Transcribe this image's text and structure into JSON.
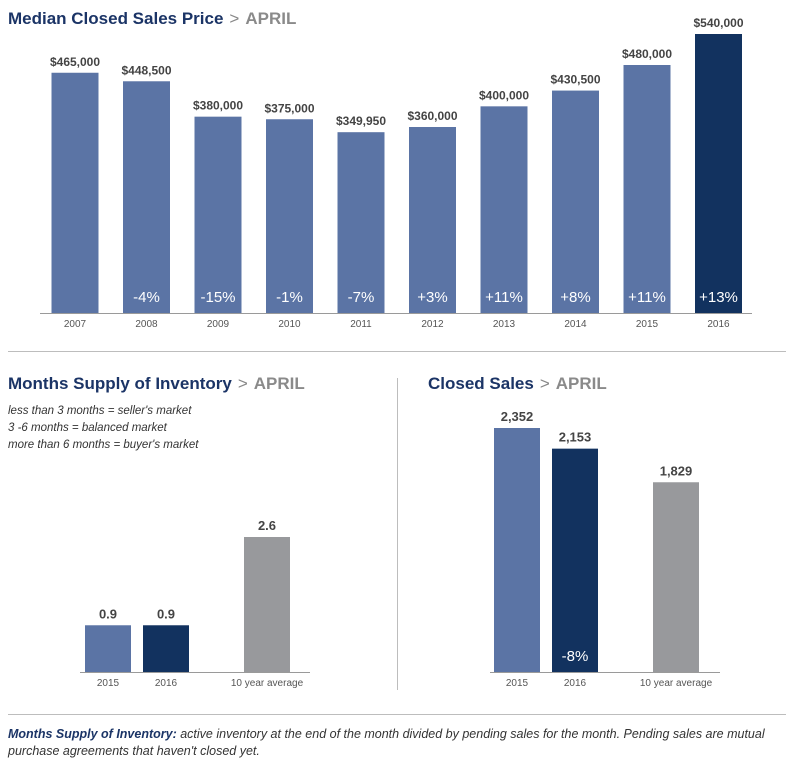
{
  "colors": {
    "bar": "#5b74a5",
    "highlight": "#12325f",
    "average": "#98999c",
    "axis": "#9a9a9a"
  },
  "price_chart": {
    "title": "Median Closed Sales Price",
    "subtitle": "APRIL",
    "chart_data": {
      "type": "bar",
      "title": "Median Closed Sales Price",
      "categories": [
        "2007",
        "2008",
        "2009",
        "2010",
        "2011",
        "2012",
        "2013",
        "2014",
        "2015",
        "2016"
      ],
      "values": [
        465000,
        448500,
        380000,
        375000,
        349950,
        360000,
        400000,
        430500,
        480000,
        540000
      ],
      "value_labels": [
        "$465,000",
        "$448,500",
        "$380,000",
        "$375,000",
        "$349,950",
        "$360,000",
        "$400,000",
        "$430,500",
        "$480,000",
        "$540,000"
      ],
      "change_labels": [
        "",
        "-4%",
        "-15%",
        "-1%",
        "-7%",
        "+3%",
        "+11%",
        "+8%",
        "+11%",
        "+13%"
      ],
      "highlight_index": 9,
      "ylim": [
        0,
        540000
      ]
    }
  },
  "supply_chart": {
    "title": "Months Supply of Inventory",
    "subtitle": "APRIL",
    "legend_lines": [
      "less than 3 months = seller's market",
      "3 -6 months = balanced market",
      "more than 6 months = buyer's market"
    ],
    "chart_data": {
      "type": "bar",
      "title": "Months Supply of Inventory",
      "categories": [
        "2015",
        "2016",
        "10 year average"
      ],
      "values": [
        0.9,
        0.9,
        2.6
      ],
      "value_labels": [
        "0.9",
        "0.9",
        "2.6"
      ],
      "ylim": [
        0,
        6.5
      ]
    }
  },
  "sales_chart": {
    "title": "Closed Sales",
    "subtitle": "APRIL",
    "chart_data": {
      "type": "bar",
      "title": "Closed Sales",
      "categories": [
        "2015",
        "2016",
        "10 year average"
      ],
      "values": [
        2352,
        2153,
        1829
      ],
      "value_labels": [
        "2,352",
        "2,153",
        "1,829"
      ],
      "change_labels": [
        "",
        "-8%",
        ""
      ],
      "ylim": [
        0,
        2352
      ]
    }
  },
  "footnote": {
    "term": "Months Supply of Inventory:",
    "text": " active inventory at the end of the month divided by pending sales for the month. Pending sales are mutual purchase agreements that haven't closed yet."
  }
}
